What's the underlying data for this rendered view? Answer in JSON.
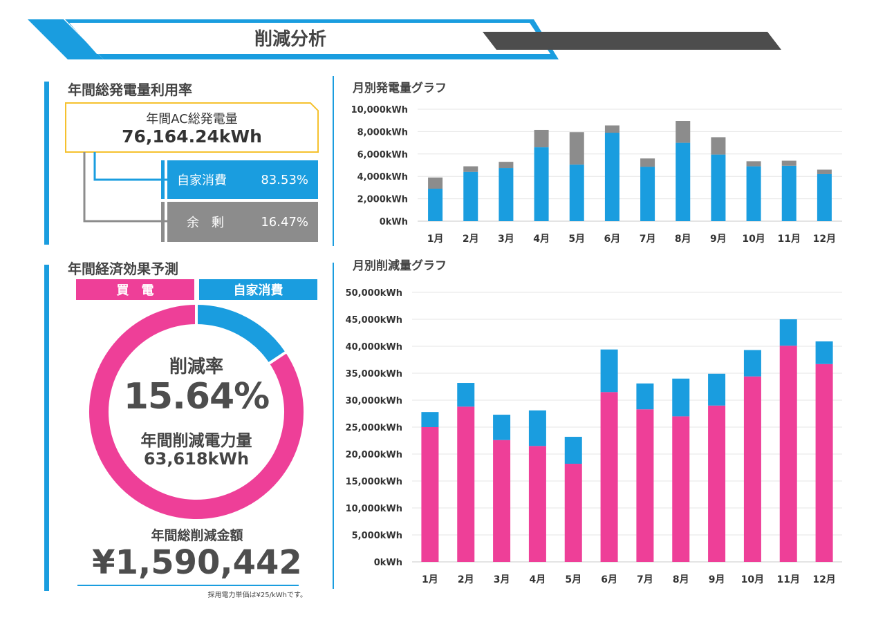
{
  "header": {
    "title": "削減分析"
  },
  "generation_rate": {
    "section_title": "年間総発電量利用率",
    "total_label": "年間AC総発電量",
    "total_value": "76,164.24kWh",
    "self_label": "自家消費",
    "self_value": "83.53%",
    "surplus_label": "余　剰",
    "surplus_value": "16.47%"
  },
  "economic": {
    "section_title": "年間経済効果予測",
    "legend_buy": "買　電",
    "legend_self": "自家消費",
    "rate_label": "削減率",
    "rate_value": "15.64%",
    "reduction_label": "年間削減電力量",
    "reduction_value": "63,618kWh",
    "amount_label": "年間総削減金額",
    "amount_value": "¥1,590,442",
    "note": "採用電力単価は¥25/kWhです。"
  },
  "colors": {
    "blue": "#1a9ddf",
    "gray": "#8c8c8c",
    "pink": "#ee3f98",
    "yellow": "#f5c12e",
    "dark": "#4d4d4d"
  },
  "chart_data": [
    {
      "type": "bar",
      "stacked": true,
      "title": "月別発電量グラフ",
      "categories": [
        "1月",
        "2月",
        "3月",
        "4月",
        "5月",
        "6月",
        "7月",
        "8月",
        "9月",
        "10月",
        "11月",
        "12月"
      ],
      "series": [
        {
          "values": [
            2900,
            4400,
            4750,
            6600,
            5050,
            7900,
            4850,
            7000,
            5950,
            4900,
            4950,
            4200
          ]
        },
        {
          "values": [
            1000,
            500,
            550,
            1550,
            2900,
            650,
            750,
            1950,
            1550,
            450,
            450,
            400
          ]
        }
      ],
      "y_ticks": [
        "0kWh",
        "2,000kWh",
        "4,000kWh",
        "6,000kWh",
        "8,000kWh",
        "10,000kWh"
      ],
      "ylim": [
        0,
        10000
      ],
      "grid": true
    },
    {
      "type": "bar",
      "stacked": true,
      "title": "月別削減量グラフ",
      "categories": [
        "1月",
        "2月",
        "3月",
        "4月",
        "5月",
        "6月",
        "7月",
        "8月",
        "9月",
        "10月",
        "11月",
        "12月"
      ],
      "series": [
        {
          "values": [
            25000,
            28800,
            22600,
            21500,
            18200,
            31500,
            28300,
            27000,
            29000,
            34400,
            40100,
            36700
          ]
        },
        {
          "values": [
            2800,
            4400,
            4700,
            6600,
            5000,
            7900,
            4800,
            7000,
            5900,
            4900,
            4900,
            4200
          ]
        }
      ],
      "y_ticks": [
        "0kWh",
        "5,000kWh",
        "10,000kWh",
        "15,000kWh",
        "20,000kWh",
        "25,000kWh",
        "30,000kWh",
        "35,000kWh",
        "40,000kWh",
        "45,000kWh",
        "50,000kWh"
      ],
      "ylim": [
        0,
        50000
      ],
      "grid": true
    },
    {
      "type": "pie",
      "labels": [
        "買　電",
        "自家消費"
      ],
      "values": [
        84.36,
        15.64
      ]
    }
  ]
}
